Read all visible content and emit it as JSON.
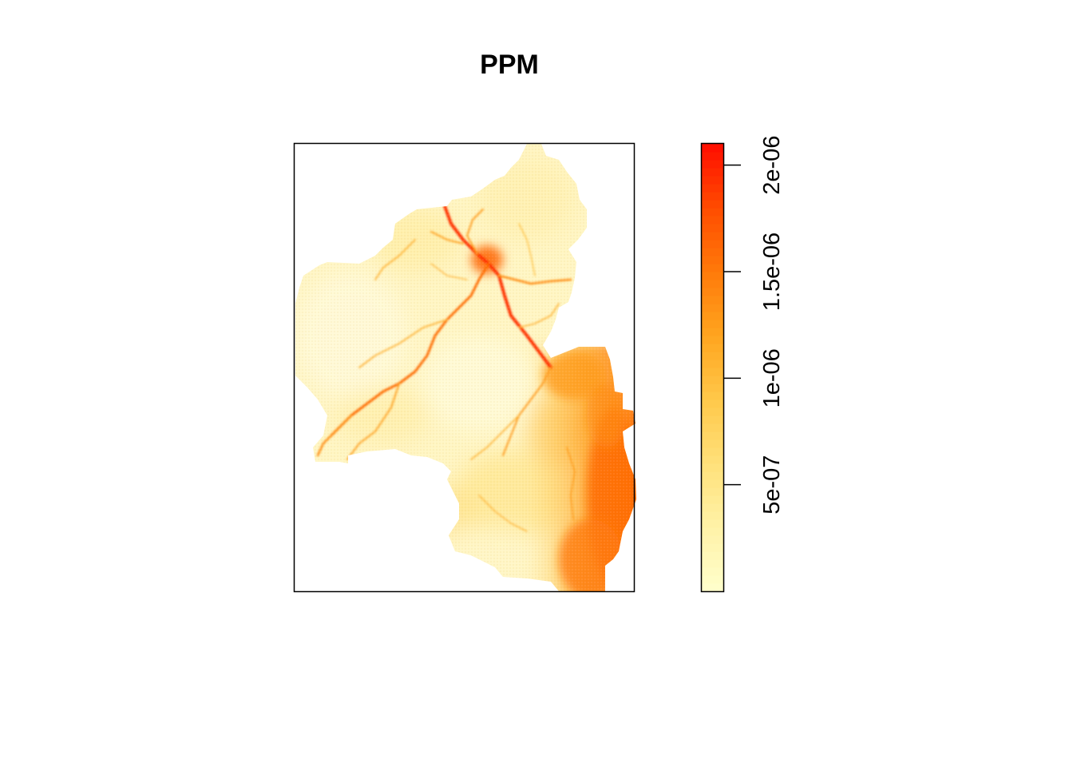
{
  "chart_data": {
    "type": "heatmap",
    "title": "PPM",
    "xlabel": "",
    "ylabel": "",
    "axes_shown": false,
    "legend": {
      "type": "colorbar",
      "placement": "right",
      "range": [
        0,
        2.1e-06
      ],
      "ticks": [
        {
          "value": 5e-07,
          "label": "5e-07"
        },
        {
          "value": 1e-06,
          "label": "1e-06"
        },
        {
          "value": 1.5e-06,
          "label": "1.5e-06"
        },
        {
          "value": 2e-06,
          "label": "2e-06"
        }
      ],
      "palette": [
        "#ffffcc",
        "#fff2a8",
        "#ffe17a",
        "#ffc84a",
        "#ffa51f",
        "#ff7a0a",
        "#ff4c00",
        "#ff0d00"
      ]
    },
    "background_color": "#ffffff"
  }
}
